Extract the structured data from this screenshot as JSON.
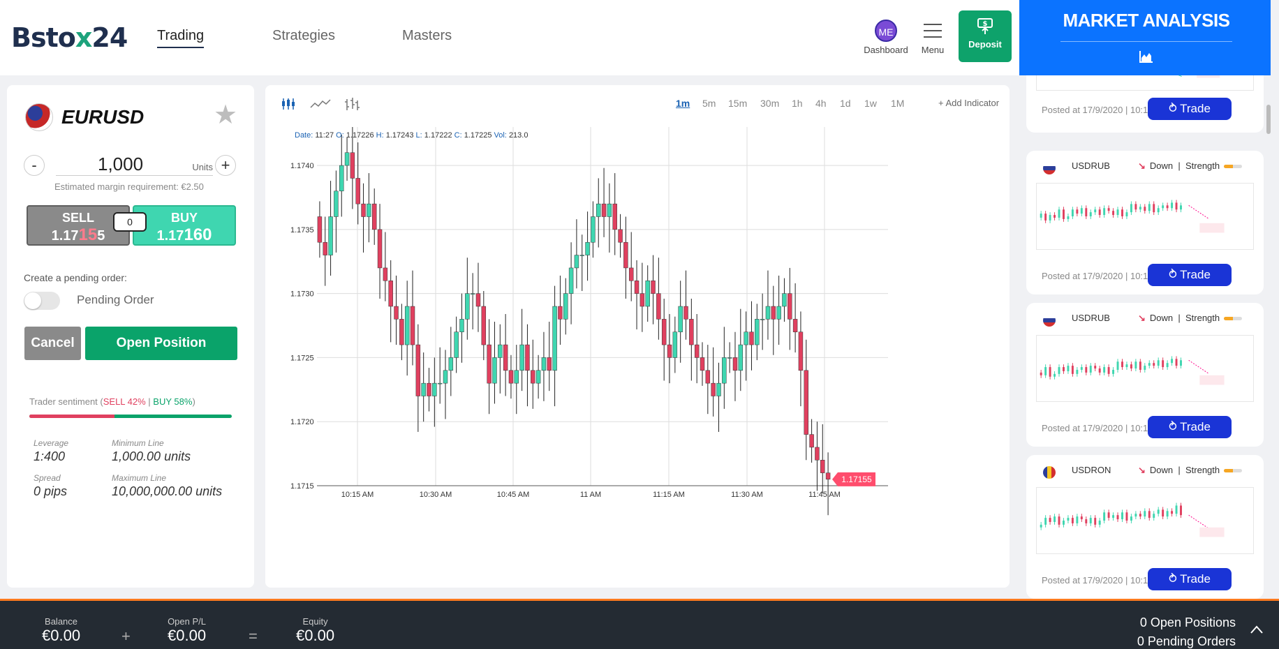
{
  "header": {
    "logo_prefix": "Bsto",
    "logo_x": "x",
    "logo_suffix": "24",
    "nav": [
      "Trading",
      "Strategies",
      "Masters"
    ],
    "dashboard_initials": "ME",
    "dashboard_label": "Dashboard",
    "menu_label": "Menu",
    "deposit_label": "Deposit",
    "deposit_icon": "money-up-icon"
  },
  "order": {
    "pair": "EURUSD",
    "minus": "-",
    "plus": "+",
    "units_value": "1,000",
    "units_label": "Units",
    "margin_text": "Estimated margin requirement: €2.50",
    "sell_label": "SELL",
    "sell_price_pre": "1.17",
    "sell_price_big": "15",
    "sell_price_post": "5",
    "buy_label": "BUY",
    "buy_price_pre": "1.17",
    "buy_price_big": "160",
    "spread": "0",
    "pending_label": "Create a pending order:",
    "pending_text": "Pending Order",
    "cancel_label": "Cancel",
    "open_label": "Open Position",
    "sentiment_prefix": "Trader sentiment (",
    "sentiment_sell": "SELL 42%",
    "sentiment_sep": " | ",
    "sentiment_buy": "BUY 58%",
    "sentiment_suffix": ")",
    "sentiment_sell_pct": 42,
    "stats": [
      {
        "label": "Leverage",
        "value": "1:400"
      },
      {
        "label": "Minimum Line",
        "value": "1,000.00 units"
      },
      {
        "label": "Spread",
        "value": "0 pips"
      },
      {
        "label": "Maximum Line",
        "value": "10,000,000.00 units"
      }
    ]
  },
  "chart_toolbar": {
    "timeframes": [
      "1m",
      "5m",
      "15m",
      "30m",
      "1h",
      "4h",
      "1d",
      "1w",
      "1M"
    ],
    "active_timeframe": "1m",
    "add_indicator": "+ Add Indicator",
    "ohlc": {
      "date_k": "Date:",
      "date_v": "11:27",
      "o_k": "O:",
      "o_v": "1.17226",
      "h_k": "H:",
      "h_v": "1.17243",
      "l_k": "L:",
      "l_v": "1.17222",
      "c_k": "C:",
      "c_v": "1.17225",
      "vol_k": "Vol:",
      "vol_v": "213.0"
    }
  },
  "chart_data": {
    "type": "candlestick",
    "x_ticks": [
      "10:15 AM",
      "10:30 AM",
      "10:45 AM",
      "11 AM",
      "11:15 AM",
      "11:30 AM",
      "11:45 AM"
    ],
    "y_ticks": [
      "1.1740",
      "1.1735",
      "1.1730",
      "1.1725",
      "1.1720",
      "1.1715"
    ],
    "ylim": [
      1.1715,
      1.1743
    ],
    "last_price": "1.17155",
    "up_color": "#3fd6b0",
    "down_color": "#e0405f",
    "closes": [
      1.1734,
      1.1733,
      1.1736,
      1.1738,
      1.174,
      1.1741,
      1.1739,
      1.1737,
      1.1736,
      1.1737,
      1.1735,
      1.1732,
      1.1731,
      1.1729,
      1.1728,
      1.1726,
      1.1729,
      1.1726,
      1.1722,
      1.1723,
      1.1722,
      1.1723,
      1.1723,
      1.1724,
      1.1725,
      1.1727,
      1.1728,
      1.173,
      1.173,
      1.1729,
      1.1726,
      1.1723,
      1.1725,
      1.1726,
      1.1724,
      1.1723,
      1.1724,
      1.1726,
      1.1724,
      1.1723,
      1.1724,
      1.1725,
      1.1724,
      1.1729,
      1.1728,
      1.173,
      1.1732,
      1.1733,
      1.1733,
      1.1734,
      1.1736,
      1.1737,
      1.1736,
      1.1737,
      1.1735,
      1.1734,
      1.1732,
      1.1731,
      1.173,
      1.1729,
      1.1731,
      1.173,
      1.1728,
      1.1726,
      1.1725,
      1.1727,
      1.1729,
      1.1728,
      1.1726,
      1.1725,
      1.1724,
      1.1723,
      1.1722,
      1.1723,
      1.1725,
      1.1725,
      1.1724,
      1.1726,
      1.1727,
      1.1726,
      1.1728,
      1.1728,
      1.1729,
      1.1728,
      1.1729,
      1.173,
      1.1728,
      1.1727,
      1.1724,
      1.1719,
      1.1718,
      1.1717,
      1.1716,
      1.17155
    ]
  },
  "market_analysis": {
    "title": "MARKET ANALYSIS",
    "icon": "area-chart-icon",
    "top_posted": "Posted at 17/9/2020 | 10:11",
    "top_trade": "Trade",
    "cards": [
      {
        "symbol": "USDRUB",
        "direction": "Down",
        "strength": "Strength",
        "posted": "Posted at 17/9/2020 | 10:11",
        "trade": "Trade"
      },
      {
        "symbol": "USDRUB",
        "direction": "Down",
        "strength": "Strength",
        "posted": "Posted at 17/9/2020 | 10:11",
        "trade": "Trade"
      },
      {
        "symbol": "USDRON",
        "direction": "Down",
        "strength": "Strength",
        "posted": "Posted at 17/9/2020 | 10:10",
        "trade": "Trade"
      }
    ]
  },
  "footer": {
    "balance_label": "Balance",
    "balance_value": "€0.00",
    "plus": "+",
    "openpl_label": "Open P/L",
    "openpl_value": "€0.00",
    "equals": "=",
    "equity_label": "Equity",
    "equity_value": "€0.00",
    "open_positions": "0 Open Positions",
    "pending_orders": "0 Pending Orders"
  }
}
